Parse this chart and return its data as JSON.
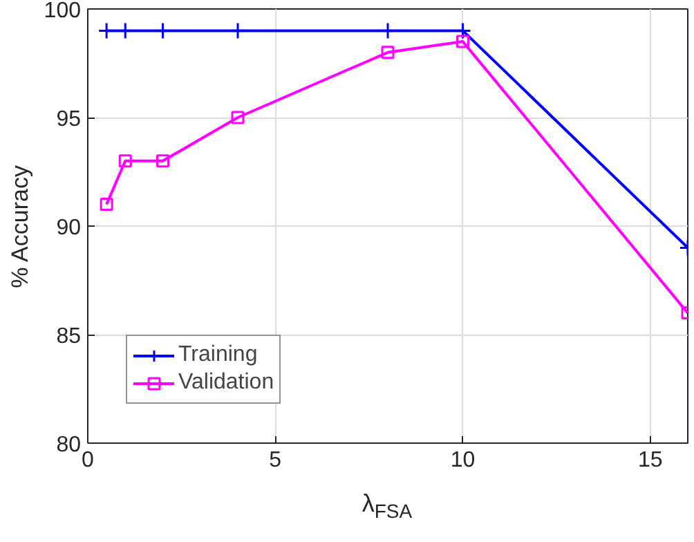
{
  "chart_data": {
    "type": "line",
    "xlabel": "λ$_{FSA}$",
    "ylabel": "% Accuracy",
    "xlim": [
      0,
      16
    ],
    "xticks": [
      0,
      5,
      10,
      15
    ],
    "ylim": [
      80,
      100
    ],
    "yticks": [
      80,
      85,
      90,
      95,
      100
    ],
    "grid": true,
    "legend": "bottom left",
    "line_style": "solid",
    "series": [
      {
        "name": "Training",
        "color": "#0000ff",
        "marker": "cross",
        "x": [
          0.5,
          1,
          2,
          4,
          8,
          10,
          16
        ],
        "values": [
          99,
          99,
          99,
          99,
          99,
          99,
          89
        ]
      },
      {
        "name": "Validation",
        "color": "#ff00ff",
        "marker": "square",
        "x": [
          0.5,
          1,
          2,
          4,
          8,
          10,
          16
        ],
        "values": [
          91,
          93,
          93,
          95,
          98,
          98.5,
          86
        ]
      }
    ]
  }
}
